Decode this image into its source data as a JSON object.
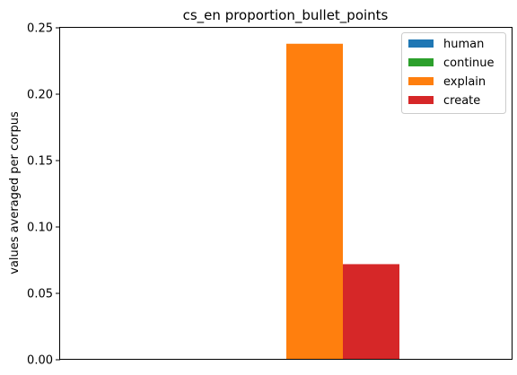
{
  "chart_data": {
    "type": "bar",
    "title": "cs_en proportion_bullet_points",
    "xlabel": "",
    "ylabel": "values averaged per corpus",
    "ylim": [
      0,
      0.25
    ],
    "yticks": [
      "0.00",
      "0.05",
      "0.10",
      "0.15",
      "0.20",
      "0.25"
    ],
    "categories": [
      ""
    ],
    "series": [
      {
        "name": "human",
        "values": [
          0.0
        ],
        "color": "#1f77b4"
      },
      {
        "name": "continue",
        "values": [
          0.0
        ],
        "color": "#2ca02c"
      },
      {
        "name": "explain",
        "values": [
          0.238
        ],
        "color": "#ff7f0e"
      },
      {
        "name": "create",
        "values": [
          0.072
        ],
        "color": "#d62728"
      }
    ],
    "grid": false,
    "legend_position": "top-right"
  }
}
